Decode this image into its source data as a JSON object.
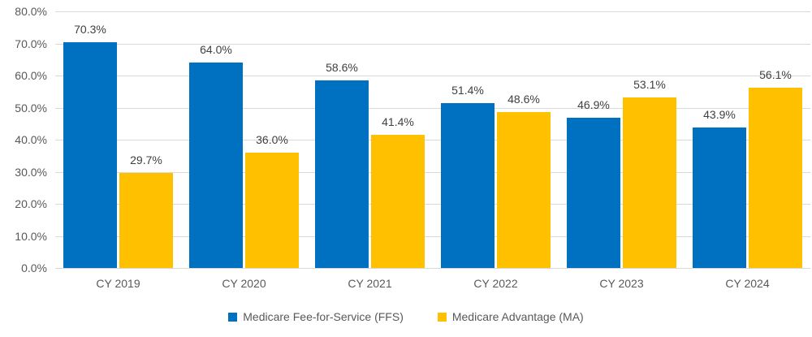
{
  "chart_data": {
    "type": "bar",
    "title": "",
    "xlabel": "",
    "ylabel": "",
    "categories": [
      "CY 2019",
      "CY 2020",
      "CY 2021",
      "CY 2022",
      "CY 2023",
      "CY 2024"
    ],
    "series": [
      {
        "name": "Medicare Fee-for-Service (FFS)",
        "color": "#0070C0",
        "values": [
          70.3,
          64.0,
          58.6,
          51.4,
          46.9,
          43.9
        ],
        "labels": [
          "70.3%",
          "64.0%",
          "58.6%",
          "51.4%",
          "46.9%",
          "43.9%"
        ]
      },
      {
        "name": "Medicare Advantage (MA)",
        "color": "#FFC000",
        "values": [
          29.7,
          36.0,
          41.4,
          48.6,
          53.1,
          56.1
        ],
        "labels": [
          "29.7%",
          "36.0%",
          "41.4%",
          "48.6%",
          "53.1%",
          "56.1%"
        ]
      }
    ],
    "ylim": [
      0,
      80
    ],
    "yticks": [
      "80.0%",
      "70.0%",
      "60.0%",
      "50.0%",
      "40.0%",
      "30.0%",
      "20.0%",
      "10.0%",
      "0.0%"
    ],
    "grid": true,
    "legend_position": "bottom",
    "colors": {
      "gridline": "#d9d9d9",
      "axis_text": "#595959",
      "data_label_text": "#404040",
      "background": "#ffffff"
    }
  }
}
